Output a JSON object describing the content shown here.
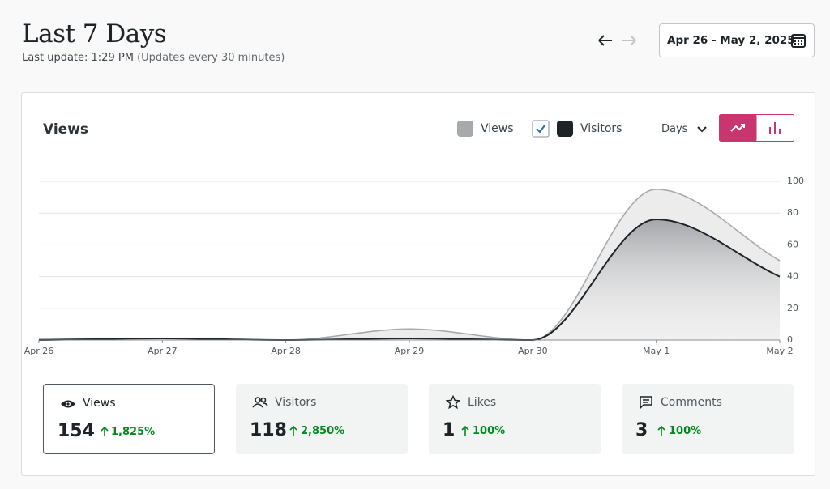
{
  "header": {
    "title": "Last 7 Days",
    "last_update": "Last update: 1:29 PM",
    "update_note": "(Updates every 30 minutes)",
    "date_range": "Apr 26 - May 2, 2025"
  },
  "chart_data": {
    "type": "line",
    "title": "Views",
    "categories": [
      "Apr 26",
      "Apr 27",
      "Apr 28",
      "Apr 29",
      "Apr 30",
      "May 1",
      "May 2"
    ],
    "series": [
      {
        "name": "Views",
        "color": "#a7aaad",
        "values": [
          1,
          1,
          0,
          7,
          0,
          95,
          50
        ]
      },
      {
        "name": "Visitors",
        "color": "#1d2327",
        "values": [
          0,
          1,
          0,
          1,
          0,
          76,
          40
        ]
      }
    ],
    "ylim": [
      0,
      100
    ],
    "yticks": [
      0,
      20,
      40,
      60,
      80,
      100
    ],
    "grid": true,
    "interval": "Days"
  },
  "stats": [
    {
      "label": "Views",
      "value": 154,
      "change": "1,825%"
    },
    {
      "label": "Visitors",
      "value": 118,
      "change": "2,850%"
    },
    {
      "label": "Likes",
      "value": 1,
      "change": "100%"
    },
    {
      "label": "Comments",
      "value": 3,
      "change": "100%"
    }
  ]
}
